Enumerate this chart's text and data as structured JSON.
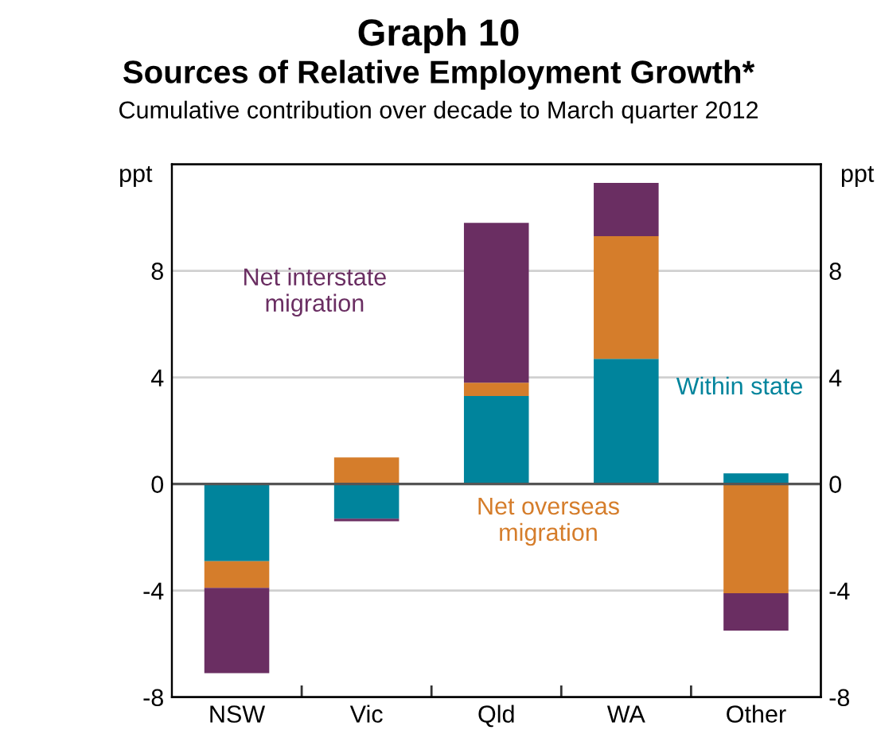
{
  "chart_data": {
    "type": "bar",
    "stacked": true,
    "title": "Graph 10",
    "subtitle": "Sources of Relative Employment Growth*",
    "annotations": [
      "Cumulative contribution over decade to March quarter 2012"
    ],
    "ylabel": "ppt",
    "y2label": "ppt",
    "categories": [
      "NSW",
      "Vic",
      "Qld",
      "WA",
      "Other"
    ],
    "series": [
      {
        "name": "Within state",
        "color": "#00849c",
        "values": [
          -2.9,
          -1.3,
          3.3,
          4.7,
          0.4
        ]
      },
      {
        "name": "Net overseas migration",
        "color": "#d57d2b",
        "values": [
          -1.0,
          1.0,
          0.5,
          4.6,
          -4.1
        ]
      },
      {
        "name": "Net interstate migration",
        "color": "#6a2e62",
        "values": [
          -3.2,
          -0.1,
          6.0,
          2.0,
          -1.4
        ]
      }
    ],
    "ylim": [
      -8,
      12
    ],
    "yticks": [
      -8,
      -4,
      0,
      4,
      8
    ],
    "y2lim": [
      -8,
      12
    ],
    "y2ticks": [
      -8,
      -4,
      0,
      4,
      8
    ],
    "grid": "y",
    "legend": false,
    "ref_lines": [
      {
        "axis": "y",
        "value": 0,
        "color": "#555555"
      }
    ]
  }
}
